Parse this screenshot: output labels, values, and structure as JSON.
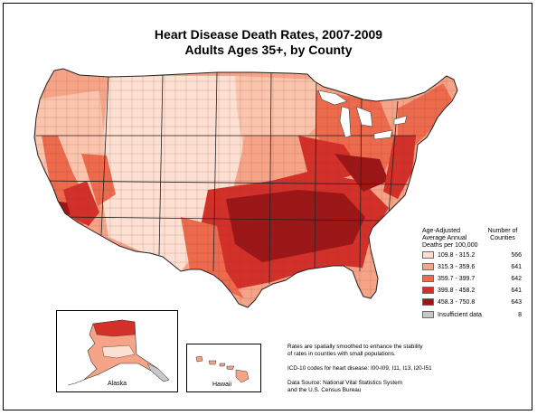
{
  "title_line1": "Heart Disease Death Rates, 2007-2009",
  "title_line2": "Adults Ages 35+, by County",
  "legend": {
    "heading_lines": [
      "Age-Adjusted",
      "Average Annual",
      "Deaths per 100,000"
    ],
    "count_heading_lines": [
      "Number of",
      "Counties"
    ],
    "classes": [
      {
        "range": "109.8 - 315.2",
        "count": "566",
        "color": "#fde0d2"
      },
      {
        "range": "315.3 - 359.6",
        "count": "641",
        "color": "#f6a487"
      },
      {
        "range": "359.7 - 399.7",
        "count": "642",
        "color": "#ee6a4d"
      },
      {
        "range": "399.8 - 458.2",
        "count": "641",
        "color": "#d3302a"
      },
      {
        "range": "458.3 - 750.8",
        "count": "643",
        "color": "#9c1618"
      },
      {
        "range": "Insufficient data",
        "count": "8",
        "color": "#c8c8c8"
      }
    ]
  },
  "notes": {
    "note1_lines": [
      "Rates are spatially smoothed to enhance the stability",
      "of rates in counties with small populations."
    ],
    "note2": "ICD-10 codes for heart disease: I00-I09, I11, I13, I20-I51",
    "note3_lines": [
      "Data Source: National Vital Statistics System",
      "and the U.S. Census Bureau"
    ]
  },
  "insets": {
    "alaska_label": "Alaska",
    "hawaii_label": "Hawaii"
  }
}
